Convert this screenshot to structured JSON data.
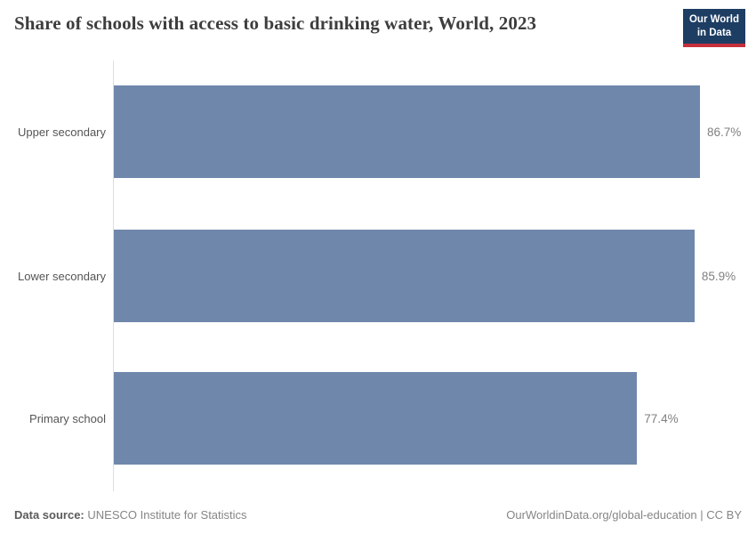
{
  "header": {
    "title": "Share of schools with access to basic drinking water, World, 2023",
    "logo": {
      "line1": "Our World",
      "line2": "in Data",
      "bg_color": "#1d3d63",
      "accent_color": "#c5303c"
    }
  },
  "chart_data": {
    "type": "bar",
    "orientation": "horizontal",
    "title": "Share of schools with access to basic drinking water, World, 2023",
    "categories": [
      "Upper secondary",
      "Lower secondary",
      "Primary school"
    ],
    "values": [
      86.7,
      85.9,
      77.4
    ],
    "value_labels": [
      "86.7%",
      "85.9%",
      "77.4%"
    ],
    "unit": "%",
    "xlabel": "",
    "ylabel": "",
    "xlim": [
      0,
      86.7
    ],
    "grid": false,
    "legend": false,
    "bar_color": "#7087ac",
    "label_color": "#808080"
  },
  "footer": {
    "data_source_label": "Data source:",
    "data_source_value": "UNESCO Institute for Statistics",
    "link_text": "OurWorldinData.org/global-education | CC BY"
  }
}
